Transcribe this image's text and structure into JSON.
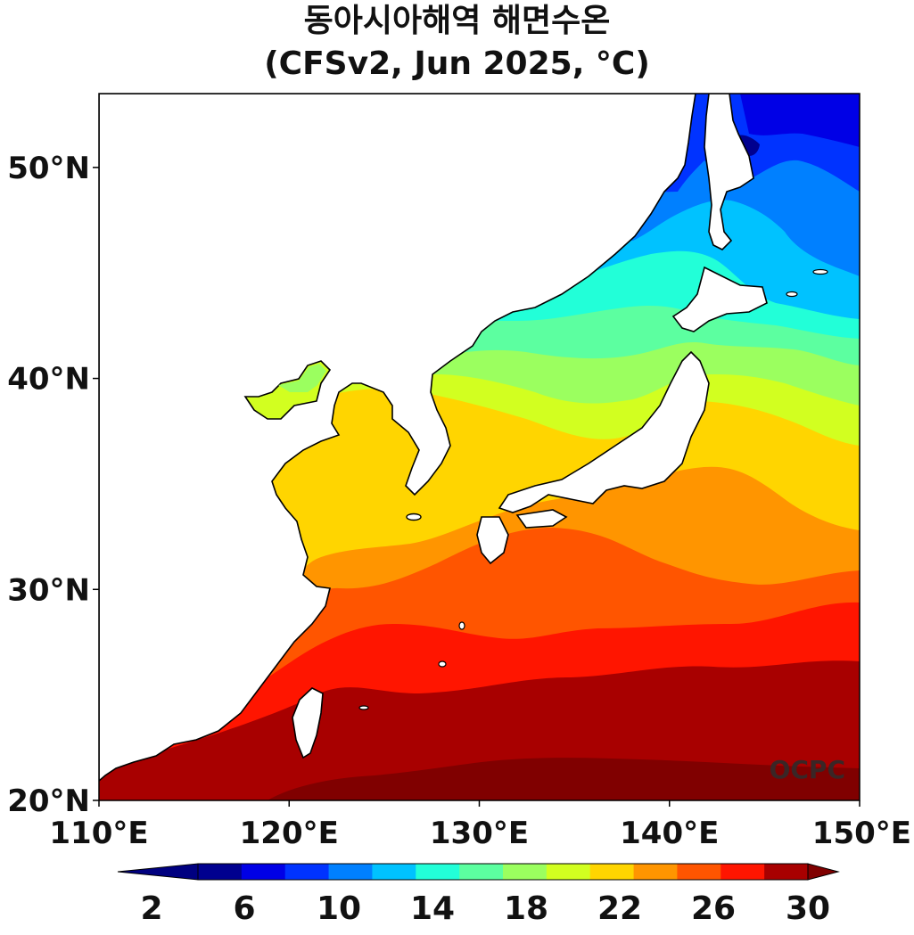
{
  "title": {
    "line1": "동아시아해역 해면수온",
    "line2": "(CFSv2, Jun 2025, °C)"
  },
  "map": {
    "lon_range": [
      110,
      150
    ],
    "lat_range": [
      20,
      53.5
    ],
    "lon_ticks": [
      {
        "value": 110,
        "label": "110°E"
      },
      {
        "value": 120,
        "label": "120°E"
      },
      {
        "value": 130,
        "label": "130°E"
      },
      {
        "value": 140,
        "label": "140°E"
      },
      {
        "value": 150,
        "label": "150°E"
      }
    ],
    "lat_ticks": [
      {
        "value": 20,
        "label": "20°N"
      },
      {
        "value": 30,
        "label": "30°N"
      },
      {
        "value": 40,
        "label": "40°N"
      },
      {
        "value": 50,
        "label": "50°N"
      }
    ],
    "credit": "OCPC"
  },
  "colorbar": {
    "levels": [
      2,
      4,
      6,
      8,
      10,
      12,
      14,
      16,
      18,
      20,
      22,
      24,
      26,
      28,
      30
    ],
    "labelled": [
      "2",
      "6",
      "10",
      "14",
      "18",
      "22",
      "26",
      "30"
    ],
    "colors": [
      "#00008f",
      "#0000e6",
      "#0033ff",
      "#0080ff",
      "#00c2ff",
      "#22ffd8",
      "#5cffa0",
      "#9bff5f",
      "#d2ff20",
      "#ffd500",
      "#ff9500",
      "#ff5500",
      "#ff1500",
      "#a80000"
    ],
    "under_color": "#000080",
    "over_color": "#800000"
  },
  "colors": {
    "land": "#ffffff",
    "coast": "#000000"
  }
}
